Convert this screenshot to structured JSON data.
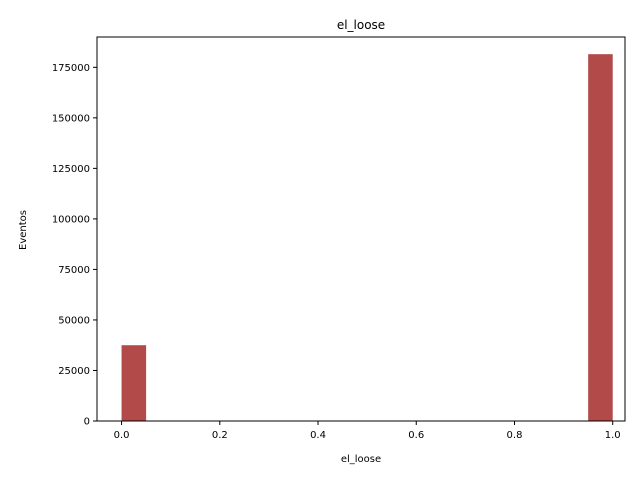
{
  "chart_data": {
    "type": "bar",
    "title": "el_loose",
    "xlabel": "el_loose",
    "ylabel": "Eventos",
    "xlim": [
      -0.05,
      1.025
    ],
    "ylim": [
      0,
      190000
    ],
    "x_ticks": [
      0.0,
      0.2,
      0.4,
      0.6,
      0.8,
      1.0
    ],
    "x_tick_labels": [
      "0.0",
      "0.2",
      "0.4",
      "0.6",
      "0.8",
      "1.0"
    ],
    "y_ticks": [
      0,
      25000,
      50000,
      75000,
      100000,
      125000,
      150000,
      175000
    ],
    "y_tick_labels": [
      "0",
      "25000",
      "50000",
      "75000",
      "100000",
      "125000",
      "150000",
      "175000"
    ],
    "bar_color": "#a52a2a",
    "bins": [
      {
        "x0": 0.0,
        "x1": 0.05,
        "value": 37500
      },
      {
        "x0": 0.95,
        "x1": 1.0,
        "value": 181500
      }
    ],
    "grid": false,
    "legend": "none"
  }
}
